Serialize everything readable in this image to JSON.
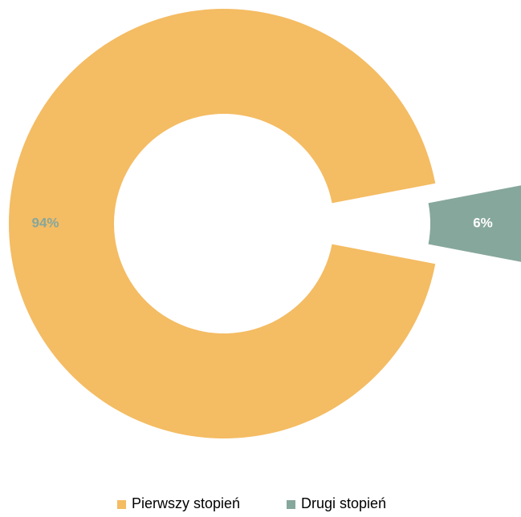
{
  "chart_data": {
    "type": "pie",
    "variant": "doughnut",
    "categories": [
      "Pierwszy stopień",
      "Drugi stopień"
    ],
    "values": [
      94,
      6
    ],
    "data_labels": [
      "94%",
      "6%"
    ],
    "colors": [
      "#F4BC63",
      "#86A79C"
    ],
    "label_colors": [
      "#86A79C",
      "#FFFFFF"
    ],
    "exploded_slice": 1,
    "legend": "bottom"
  }
}
